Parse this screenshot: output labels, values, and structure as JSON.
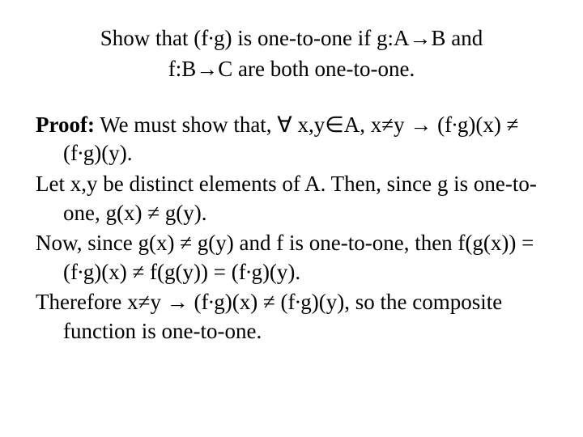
{
  "title": {
    "line1": "Show that (f∙g) is one-to-one if g:A→B and",
    "line2": "f:B→C are both one-to-one."
  },
  "proof": {
    "label": "Proof:",
    "p1_rest": "  We must show that, ∀ x,y∈A, x≠y → (f∙g)(x) ≠ (f∙g)(y).",
    "p2": "Let x,y be distinct elements of A.  Then, since g is one-to-one, g(x) ≠ g(y).",
    "p3": "Now, since g(x) ≠ g(y) and f is one-to-one, then f(g(x)) = (f∙g)(x) ≠ f(g(y)) = (f∙g)(y).",
    "p4": "Therefore x≠y → (f∙g)(x) ≠ (f∙g)(y), so the composite function is one-to-one."
  }
}
